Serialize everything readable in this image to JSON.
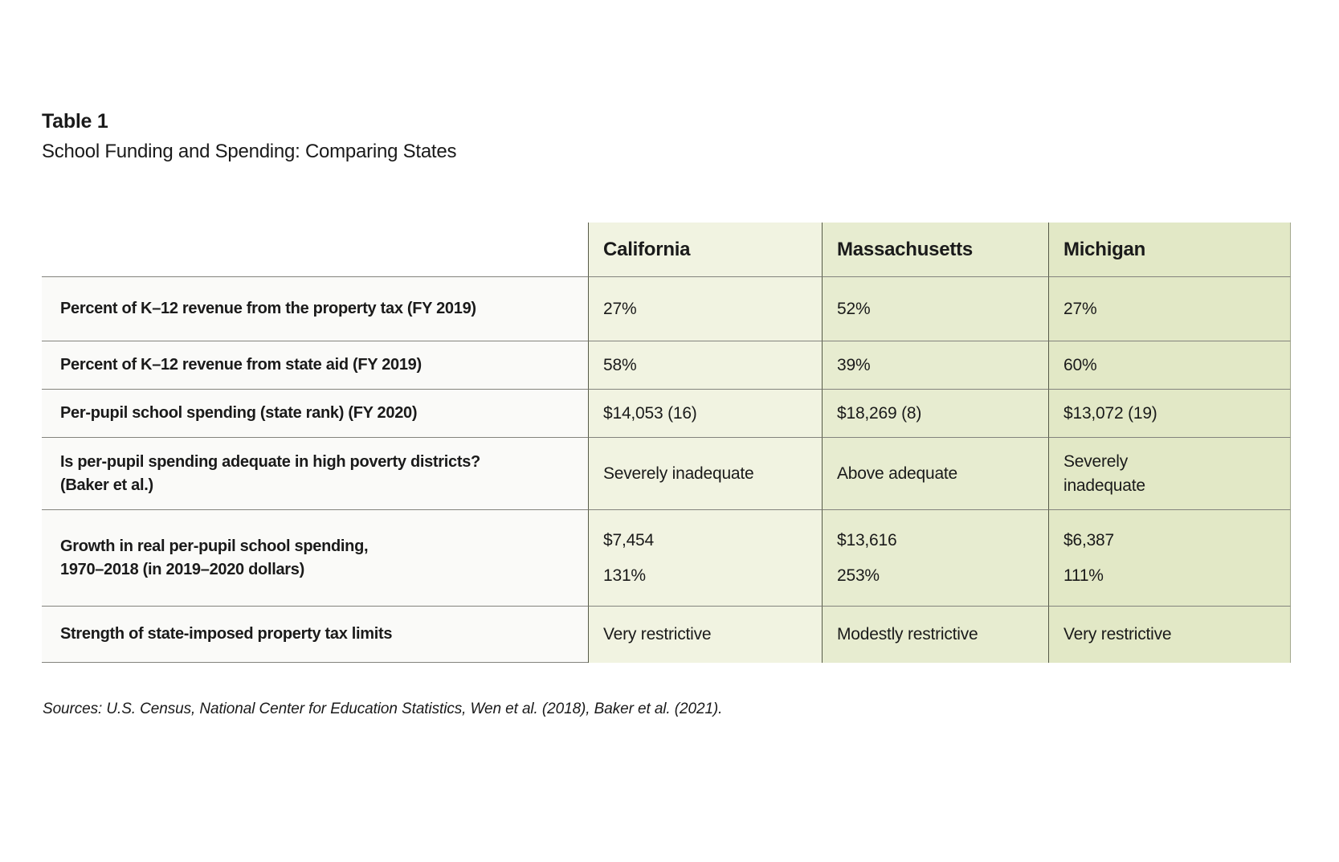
{
  "page": {
    "title": "Table 1",
    "subtitle": "School Funding and Spending: Comparing States",
    "sources": "Sources: U.S. Census, National Center for Education Statistics, Wen et al. (2018), Baker et al. (2021)."
  },
  "colors": {
    "column_fills": [
      "#f1f3e1",
      "#e7ecd0",
      "#e2e8c6"
    ],
    "divider": "#565a48",
    "row_line": "#83837d",
    "label_cell_bg": "#fafaf8",
    "text": "#1a1a1a"
  },
  "table": {
    "columns": [
      "California",
      "Massachusetts",
      "Michigan"
    ],
    "rows": [
      {
        "label_lines": [
          "Percent of K–12 revenue from the property tax (FY 2019)"
        ],
        "cells": [
          [
            "27%"
          ],
          [
            "52%"
          ],
          [
            "27%"
          ]
        ]
      },
      {
        "label_lines": [
          "Percent of K–12 revenue from state aid (FY 2019)"
        ],
        "cells": [
          [
            "58%"
          ],
          [
            "39%"
          ],
          [
            "60%"
          ]
        ]
      },
      {
        "label_lines": [
          "Per-pupil school spending (state rank) (FY 2020)"
        ],
        "cells": [
          [
            "$14,053 (16)"
          ],
          [
            "$18,269 (8)"
          ],
          [
            "$13,072 (19)"
          ]
        ]
      },
      {
        "label_lines": [
          "Is per-pupil spending adequate in high poverty districts?",
          "(Baker et al.)"
        ],
        "cells": [
          [
            "Severely inadequate"
          ],
          [
            "Above adequate"
          ],
          [
            "Severely",
            "inadequate"
          ]
        ]
      },
      {
        "label_lines": [
          "Growth in real per-pupil school spending,",
          "1970–2018 (in 2019–2020 dollars)"
        ],
        "cells": [
          [
            "$7,454",
            "131%"
          ],
          [
            "$13,616",
            "253%"
          ],
          [
            "$6,387",
            "111%"
          ]
        ],
        "value_gap": true
      },
      {
        "label_lines": [
          "Strength of state-imposed property tax limits"
        ],
        "cells": [
          [
            "Very restrictive"
          ],
          [
            "Modestly restrictive"
          ],
          [
            "Very restrictive"
          ]
        ]
      }
    ]
  },
  "chart_data": {
    "type": "table",
    "title": "Table 1: School Funding and Spending: Comparing States",
    "columns": [
      "",
      "California",
      "Massachusetts",
      "Michigan"
    ],
    "rows": [
      [
        "Percent of K–12 revenue from the property tax (FY 2019)",
        "27%",
        "52%",
        "27%"
      ],
      [
        "Percent of K–12 revenue from state aid (FY 2019)",
        "58%",
        "39%",
        "60%"
      ],
      [
        "Per-pupil school spending (state rank) (FY 2020)",
        "$14,053 (16)",
        "$18,269 (8)",
        "$13,072 (19)"
      ],
      [
        "Is per-pupil spending adequate in high poverty districts? (Baker et al.)",
        "Severely inadequate",
        "Above adequate",
        "Severely inadequate"
      ],
      [
        "Growth in real per-pupil school spending, 1970–2018 (in 2019–2020 dollars)",
        "$7,454 / 131%",
        "$13,616 / 253%",
        "$6,387 / 111%"
      ],
      [
        "Strength of state-imposed property tax limits",
        "Very restrictive",
        "Modestly restrictive",
        "Very restrictive"
      ]
    ],
    "notes": "Sources: U.S. Census, National Center for Education Statistics, Wen et al. (2018), Baker et al. (2021)."
  }
}
